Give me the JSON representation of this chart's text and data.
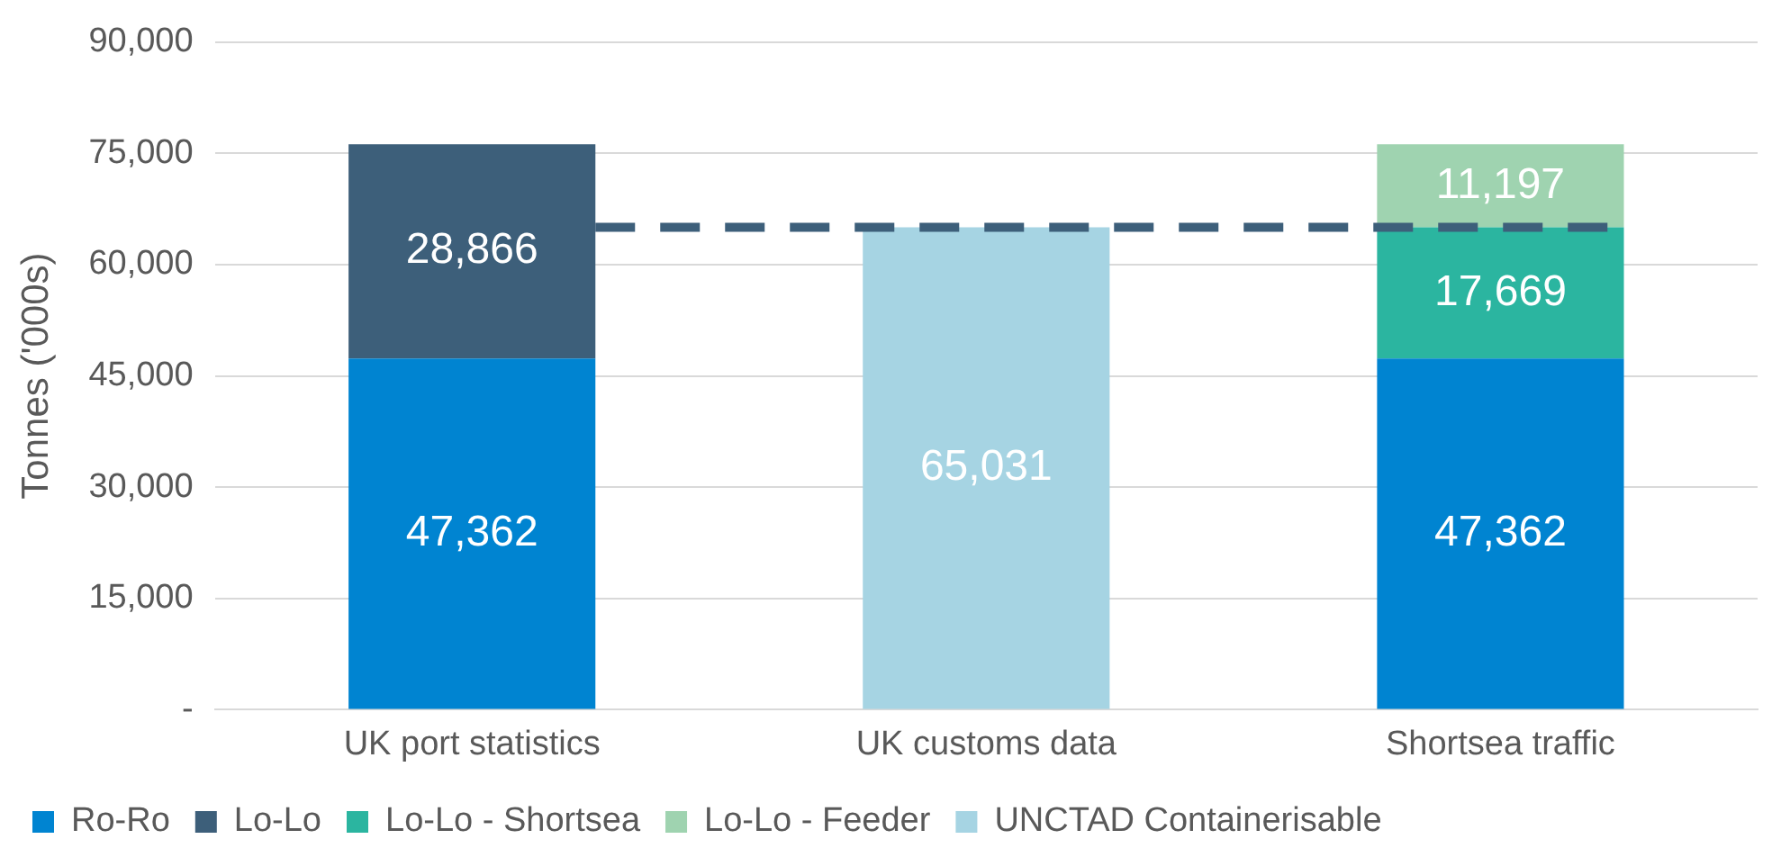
{
  "chart_data": {
    "type": "bar",
    "stacked": true,
    "ylabel": "Tonnes ('000s)",
    "categories": [
      "UK port statistics",
      "UK customs data",
      "Shortsea traffic"
    ],
    "series": [
      {
        "name": "Ro-Ro",
        "color": "#0084d1",
        "values": [
          47362,
          null,
          47362
        ],
        "value_labels": [
          "47,362",
          null,
          "47,362"
        ]
      },
      {
        "name": "Lo-Lo",
        "color": "#3d5f7a",
        "values": [
          28866,
          null,
          null
        ],
        "value_labels": [
          "28,866",
          null,
          null
        ]
      },
      {
        "name": "Lo-Lo - Shortsea",
        "color": "#2bb5a0",
        "values": [
          null,
          null,
          17669
        ],
        "value_labels": [
          null,
          null,
          "17,669"
        ]
      },
      {
        "name": "Lo-Lo - Feeder",
        "color": "#9fd3b0",
        "values": [
          null,
          null,
          11197
        ],
        "value_labels": [
          null,
          null,
          "11,197"
        ]
      },
      {
        "name": "UNCTAD Containerisable",
        "color": "#a6d4e3",
        "values": [
          null,
          65031,
          null
        ],
        "value_labels": [
          null,
          "65,031",
          null
        ]
      }
    ],
    "ylim": [
      0,
      90000
    ],
    "yticks": [
      {
        "value": 0,
        "label": "-"
      },
      {
        "value": 15000,
        "label": "15,000"
      },
      {
        "value": 30000,
        "label": "30,000"
      },
      {
        "value": 45000,
        "label": "45,000"
      },
      {
        "value": 60000,
        "label": "60,000"
      },
      {
        "value": 75000,
        "label": "75,000"
      },
      {
        "value": 90000,
        "label": "90,000"
      }
    ],
    "ref_lines": [
      {
        "axis": "y",
        "value": 65031,
        "color": "#3d5f7a",
        "line_style": "dashed"
      }
    ],
    "grid": "y",
    "legend": "bottom"
  }
}
